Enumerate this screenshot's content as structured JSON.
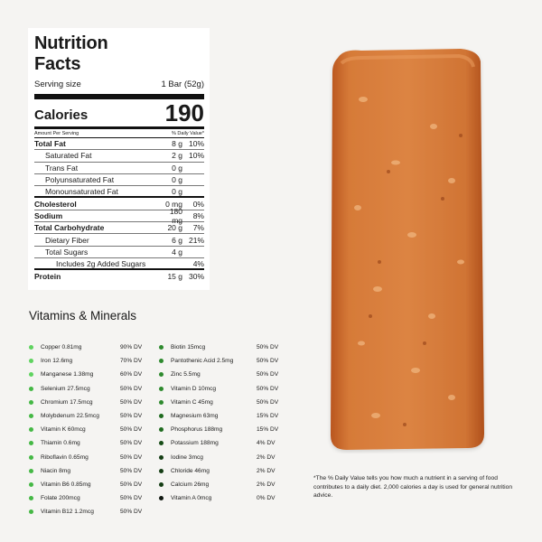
{
  "label": {
    "title_line1": "Nutrition",
    "title_line2": "Facts",
    "serving_label": "Serving size",
    "serving_value": "1 Bar (52g)",
    "calories_label": "Calories",
    "calories_value": "190",
    "amount_header": "Amount Per Serving",
    "dv_header": "% Daily Value*",
    "rows": [
      {
        "name": "Total Fat",
        "amount": "8 g",
        "dv": "10%"
      },
      {
        "name": "Saturated Fat",
        "amount": "2 g",
        "dv": "10%"
      },
      {
        "name": "Trans Fat",
        "amount": "0 g",
        "dv": ""
      },
      {
        "name": "Polyunsaturated Fat",
        "amount": "0 g",
        "dv": ""
      },
      {
        "name": "Monounsaturated Fat",
        "amount": "0 g",
        "dv": ""
      },
      {
        "name": "Cholesterol",
        "amount": "0 mg",
        "dv": "0%"
      },
      {
        "name": "Sodium",
        "amount": "180 mg",
        "dv": "8%"
      },
      {
        "name": "Total Carbohydrate",
        "amount": "20 g",
        "dv": "7%"
      },
      {
        "name": "Dietary Fiber",
        "amount": "6 g",
        "dv": "21%"
      },
      {
        "name": "Total Sugars",
        "amount": "4 g",
        "dv": ""
      },
      {
        "name": "Includes 2g Added Sugars",
        "amount": "",
        "dv": "4%"
      },
      {
        "name": "Protein",
        "amount": "15 g",
        "dv": "30%"
      }
    ]
  },
  "vitamins": {
    "title": "Vitamins & Minerals",
    "col1": [
      {
        "name": "Copper 0.81mg",
        "dv": "90% DV",
        "color": "#5fd35f"
      },
      {
        "name": "Iron 12.6mg",
        "dv": "70% DV",
        "color": "#5fd35f"
      },
      {
        "name": "Manganese 1.38mg",
        "dv": "60% DV",
        "color": "#5fd35f"
      },
      {
        "name": "Selenium 27.5mcg",
        "dv": "50% DV",
        "color": "#45b845"
      },
      {
        "name": "Chromium 17.5mcg",
        "dv": "50% DV",
        "color": "#45b845"
      },
      {
        "name": "Molybdenum 22.5mcg",
        "dv": "50% DV",
        "color": "#45b845"
      },
      {
        "name": "Vitamin K 60mcg",
        "dv": "50% DV",
        "color": "#45b845"
      },
      {
        "name": "Thiamin 0.6mg",
        "dv": "50% DV",
        "color": "#45b845"
      },
      {
        "name": "Riboflavin 0.65mg",
        "dv": "50% DV",
        "color": "#45b845"
      },
      {
        "name": "Niacin 8mg",
        "dv": "50% DV",
        "color": "#45b845"
      },
      {
        "name": "Vitamin B6 0.85mg",
        "dv": "50% DV",
        "color": "#45b845"
      },
      {
        "name": "Folate 200mcg",
        "dv": "50% DV",
        "color": "#45b845"
      },
      {
        "name": "Vitamin B12 1.2mcg",
        "dv": "50% DV",
        "color": "#45b845"
      }
    ],
    "col2": [
      {
        "name": "Biotin 15mcg",
        "dv": "50% DV",
        "color": "#2e8a2e"
      },
      {
        "name": "Pantothenic Acid 2.5mg",
        "dv": "50% DV",
        "color": "#2e8a2e"
      },
      {
        "name": "Zinc 5.5mg",
        "dv": "50% DV",
        "color": "#2e8a2e"
      },
      {
        "name": "Vitamin D 10mcg",
        "dv": "50% DV",
        "color": "#2e8a2e"
      },
      {
        "name": "Vitamin C 45mg",
        "dv": "50% DV",
        "color": "#2e8a2e"
      },
      {
        "name": "Magnesium 63mg",
        "dv": "15% DV",
        "color": "#1f6b1f"
      },
      {
        "name": "Phosphorus 188mg",
        "dv": "15% DV",
        "color": "#1f6b1f"
      },
      {
        "name": "Potassium 188mg",
        "dv": "4% DV",
        "color": "#174d17"
      },
      {
        "name": "Iodine 3mcg",
        "dv": "2% DV",
        "color": "#143d14"
      },
      {
        "name": "Chloride 46mg",
        "dv": "2% DV",
        "color": "#143d14"
      },
      {
        "name": "Calcium 26mg",
        "dv": "2% DV",
        "color": "#143d14"
      },
      {
        "name": "Vitamin A 0mcg",
        "dv": "0% DV",
        "color": "#111811"
      }
    ]
  },
  "footnote": "*The % Daily Value tells you how much a nutrient in a serving of food contributes to a daily diet. 2,000 calories a day is used for general nutrition advice."
}
